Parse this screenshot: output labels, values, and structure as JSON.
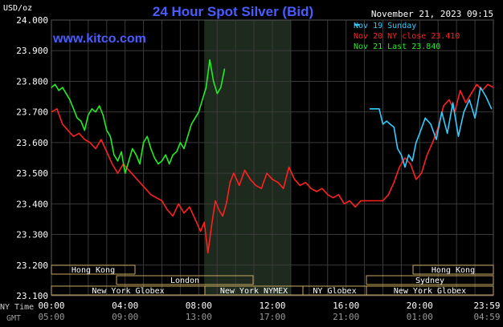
{
  "header": {
    "title": "24 Hour Spot Silver (Bid)",
    "timestamp": "November 21, 2023 09:15",
    "unit": "USD/oz",
    "watermark": "www.kitco.com"
  },
  "legend": [
    {
      "label": "Nov 19 Sunday",
      "color": "#33ccff"
    },
    {
      "label": "Nov 20 NY close 23.410",
      "color": "#ff2020"
    },
    {
      "label": "Nov 21 Last 23.840",
      "color": "#22ee22"
    }
  ],
  "sessions": {
    "row1": [
      "Hong Kong",
      "Hong Kong"
    ],
    "row2": [
      "London",
      "Sydney"
    ],
    "row3": [
      "New York Globex",
      "New York NYMEX",
      "NY Globex",
      "New York Globex"
    ]
  },
  "axis_rows": {
    "ny_label": "NY Time",
    "gmt_label": "GMT"
  },
  "chart_data": {
    "type": "line",
    "title": "24 Hour Spot Silver (Bid)",
    "ylabel": "USD/oz",
    "ylim": [
      23.1,
      24.0
    ],
    "yticks": [
      "24.000",
      "23.900",
      "23.800",
      "23.700",
      "23.600",
      "23.500",
      "23.400",
      "23.300",
      "23.200",
      "23.100"
    ],
    "xlim": [
      0,
      24
    ],
    "xticks_ny": [
      "00:00",
      "04:00",
      "08:00",
      "12:00",
      "16:00",
      "20:00",
      "23:59"
    ],
    "xticks_gmt": [
      "05:00",
      "09:00",
      "13:00",
      "17:00",
      "21:00",
      "01:00",
      "04:59"
    ],
    "xtick_hours": [
      0,
      4,
      8,
      12,
      16,
      20,
      24
    ],
    "shaded_hours": [
      8.3,
      13.0
    ],
    "grid": true,
    "legend_position": "top-right",
    "series": [
      {
        "name": "Nov 19 Sunday",
        "color": "#33ccff",
        "x": [
          17.3,
          17.8,
          18.0,
          18.2,
          18.4,
          18.6,
          18.8,
          19.0,
          19.2,
          19.4,
          19.6,
          19.8,
          20.0,
          20.3,
          20.6,
          20.9,
          21.2,
          21.5,
          21.8,
          22.1,
          22.4,
          22.7,
          23.0,
          23.3,
          23.6,
          23.9
        ],
        "y": [
          23.71,
          23.71,
          23.66,
          23.67,
          23.66,
          23.65,
          23.58,
          23.56,
          23.52,
          23.56,
          23.54,
          23.6,
          23.63,
          23.68,
          23.66,
          23.61,
          23.7,
          23.63,
          23.73,
          23.62,
          23.7,
          23.74,
          23.68,
          23.78,
          23.75,
          23.71
        ]
      },
      {
        "name": "Nov 20 NY close 23.410",
        "color": "#ff2020",
        "x": [
          0,
          0.3,
          0.6,
          0.9,
          1.2,
          1.5,
          1.8,
          2.1,
          2.4,
          2.7,
          3.0,
          3.3,
          3.6,
          3.9,
          4.2,
          4.5,
          4.8,
          5.1,
          5.4,
          5.7,
          6.0,
          6.3,
          6.6,
          6.9,
          7.2,
          7.5,
          7.8,
          8.1,
          8.3,
          8.5,
          8.7,
          8.9,
          9.1,
          9.3,
          9.5,
          9.7,
          9.9,
          10.2,
          10.5,
          10.8,
          11.1,
          11.4,
          11.7,
          12.0,
          12.3,
          12.6,
          12.9,
          13.2,
          13.5,
          13.8,
          14.1,
          14.4,
          14.7,
          15.0,
          15.3,
          15.6,
          15.9,
          16.2,
          16.5,
          16.8,
          17.1,
          17.4,
          17.7,
          18.0,
          18.3,
          18.6,
          18.9,
          19.2,
          19.5,
          19.8,
          20.1,
          20.4,
          20.7,
          21.0,
          21.3,
          21.6,
          21.9,
          22.2,
          22.5,
          22.8,
          23.1,
          23.4,
          23.7,
          24.0
        ],
        "y": [
          23.7,
          23.71,
          23.66,
          23.64,
          23.62,
          23.63,
          23.61,
          23.6,
          23.58,
          23.61,
          23.57,
          23.53,
          23.5,
          23.53,
          23.51,
          23.49,
          23.47,
          23.45,
          23.43,
          23.42,
          23.41,
          23.38,
          23.36,
          23.4,
          23.37,
          23.39,
          23.35,
          23.31,
          23.34,
          23.24,
          23.33,
          23.41,
          23.38,
          23.36,
          23.4,
          23.47,
          23.5,
          23.46,
          23.51,
          23.48,
          23.46,
          23.45,
          23.5,
          23.48,
          23.47,
          23.45,
          23.52,
          23.48,
          23.46,
          23.47,
          23.45,
          23.44,
          23.45,
          23.43,
          23.42,
          23.43,
          23.4,
          23.41,
          23.39,
          23.41,
          23.41,
          23.41,
          23.41,
          23.41,
          23.43,
          23.47,
          23.52,
          23.55,
          23.53,
          23.48,
          23.5,
          23.56,
          23.6,
          23.65,
          23.72,
          23.74,
          23.7,
          23.77,
          23.73,
          23.76,
          23.79,
          23.77,
          23.79,
          23.78
        ]
      },
      {
        "name": "Nov 21 Last 23.840",
        "color": "#22ee22",
        "x": [
          0,
          0.2,
          0.4,
          0.6,
          0.8,
          1.0,
          1.2,
          1.4,
          1.6,
          1.8,
          2.0,
          2.2,
          2.4,
          2.6,
          2.8,
          3.0,
          3.2,
          3.4,
          3.6,
          3.8,
          4.0,
          4.2,
          4.4,
          4.6,
          4.8,
          5.0,
          5.2,
          5.4,
          5.6,
          5.8,
          6.0,
          6.2,
          6.4,
          6.6,
          6.8,
          7.0,
          7.2,
          7.4,
          7.6,
          7.8,
          8.0,
          8.2,
          8.4,
          8.6,
          8.8,
          9.0,
          9.2,
          9.4
        ],
        "y": [
          23.78,
          23.79,
          23.77,
          23.78,
          23.76,
          23.74,
          23.71,
          23.68,
          23.67,
          23.64,
          23.69,
          23.71,
          23.7,
          23.72,
          23.69,
          23.64,
          23.62,
          23.56,
          23.54,
          23.57,
          23.5,
          23.54,
          23.58,
          23.56,
          23.53,
          23.6,
          23.62,
          23.58,
          23.55,
          23.53,
          23.54,
          23.56,
          23.53,
          23.56,
          23.57,
          23.6,
          23.58,
          23.62,
          23.66,
          23.68,
          23.7,
          23.74,
          23.78,
          23.87,
          23.8,
          23.76,
          23.78,
          23.84
        ]
      }
    ]
  }
}
